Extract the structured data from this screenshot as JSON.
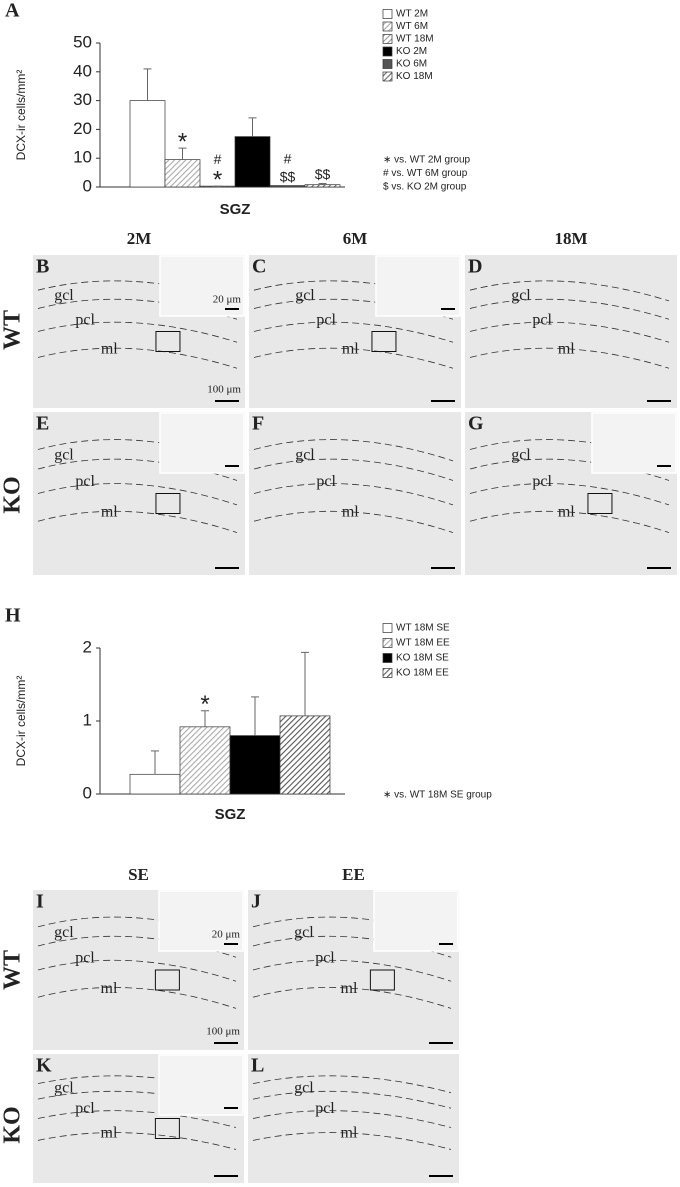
{
  "chart_data": [
    {
      "type": "bar",
      "panel": "A",
      "ylabel": "DCX-ir cells/mm²",
      "xlabel": "SGZ",
      "categories": [
        "SGZ"
      ],
      "ylim": [
        0,
        50
      ],
      "yticks": [
        0,
        10,
        20,
        30,
        40,
        50
      ],
      "series": [
        {
          "name": "WT 2M",
          "color": "#ffffff",
          "hatch": false,
          "values": [
            30
          ],
          "errors": [
            11
          ],
          "annotations": []
        },
        {
          "name": "WT 6M",
          "color": "#aaaaaa",
          "hatch": true,
          "values": [
            9.5
          ],
          "errors": [
            4
          ],
          "annotations": [
            "*"
          ]
        },
        {
          "name": "WT 18M",
          "color": "#999999",
          "hatch": true,
          "values": [
            0.3
          ],
          "errors": [
            0
          ],
          "annotations": [
            "#",
            "*"
          ]
        },
        {
          "name": "KO 2M",
          "color": "#000000",
          "hatch": false,
          "values": [
            17.5
          ],
          "errors": [
            6.5
          ],
          "annotations": []
        },
        {
          "name": "KO 6M",
          "color": "#555555",
          "hatch": false,
          "values": [
            0.5
          ],
          "errors": [
            0
          ],
          "annotations": [
            "#",
            "$$"
          ]
        },
        {
          "name": "KO 18M",
          "color": "#666666",
          "hatch": true,
          "values": [
            0.8
          ],
          "errors": [
            0.4
          ],
          "annotations": [
            "$$"
          ]
        }
      ],
      "notes": [
        "∗ vs. WT 2M group",
        "# vs. WT 6M group",
        "$ vs. KO 2M group"
      ]
    },
    {
      "type": "bar",
      "panel": "H",
      "ylabel": "DCX-ir cells/mm²",
      "xlabel": "SGZ",
      "categories": [
        "SGZ"
      ],
      "ylim": [
        0,
        2
      ],
      "yticks": [
        0,
        1,
        2
      ],
      "series": [
        {
          "name": "WT 18M SE",
          "color": "#ffffff",
          "hatch": false,
          "values": [
            0.27
          ],
          "errors": [
            0.32
          ],
          "annotations": []
        },
        {
          "name": "WT 18M EE",
          "color": "#aaaaaa",
          "hatch": true,
          "values": [
            0.92
          ],
          "errors": [
            0.22
          ],
          "annotations": [
            "*"
          ]
        },
        {
          "name": "KO 18M SE",
          "color": "#000000",
          "hatch": false,
          "values": [
            0.8
          ],
          "errors": [
            0.53
          ],
          "annotations": []
        },
        {
          "name": "KO 18M EE",
          "color": "#555555",
          "hatch": true,
          "values": [
            1.07
          ],
          "errors": [
            0.87
          ],
          "annotations": []
        }
      ],
      "notes": [
        "∗ vs. WT 18M SE group"
      ]
    }
  ],
  "grids": [
    {
      "columns": [
        "2M",
        "6M",
        "18M"
      ],
      "rows": [
        "WT",
        "KO"
      ],
      "micrographs": [
        {
          "label": "B",
          "layers": [
            "gcl",
            "pcl",
            "ml"
          ],
          "inset": true,
          "scale_labels": [
            "20 μm",
            "100 μm"
          ]
        },
        {
          "label": "C",
          "layers": [
            "gcl",
            "pcl",
            "ml"
          ],
          "inset": true,
          "scale_labels": []
        },
        {
          "label": "D",
          "layers": [
            "gcl",
            "pcl",
            "ml"
          ],
          "inset": false,
          "scale_labels": []
        },
        {
          "label": "E",
          "layers": [
            "gcl",
            "pcl",
            "ml"
          ],
          "inset": true,
          "scale_labels": []
        },
        {
          "label": "F",
          "layers": [
            "gcl",
            "pcl",
            "ml"
          ],
          "inset": false,
          "scale_labels": []
        },
        {
          "label": "G",
          "layers": [
            "gcl",
            "pcl",
            "ml"
          ],
          "inset": true,
          "scale_labels": []
        }
      ]
    },
    {
      "columns": [
        "SE",
        "EE"
      ],
      "rows": [
        "WT",
        "KO"
      ],
      "micrographs": [
        {
          "label": "I",
          "layers": [
            "gcl",
            "pcl",
            "ml"
          ],
          "inset": true,
          "scale_labels": [
            "20 μm",
            "100 μm"
          ]
        },
        {
          "label": "J",
          "layers": [
            "gcl",
            "pcl",
            "ml"
          ],
          "inset": true,
          "scale_labels": []
        },
        {
          "label": "K",
          "layers": [
            "gcl",
            "pcl",
            "ml"
          ],
          "inset": true,
          "scale_labels": []
        },
        {
          "label": "L",
          "layers": [
            "gcl",
            "pcl",
            "ml"
          ],
          "inset": false,
          "scale_labels": []
        }
      ]
    }
  ]
}
